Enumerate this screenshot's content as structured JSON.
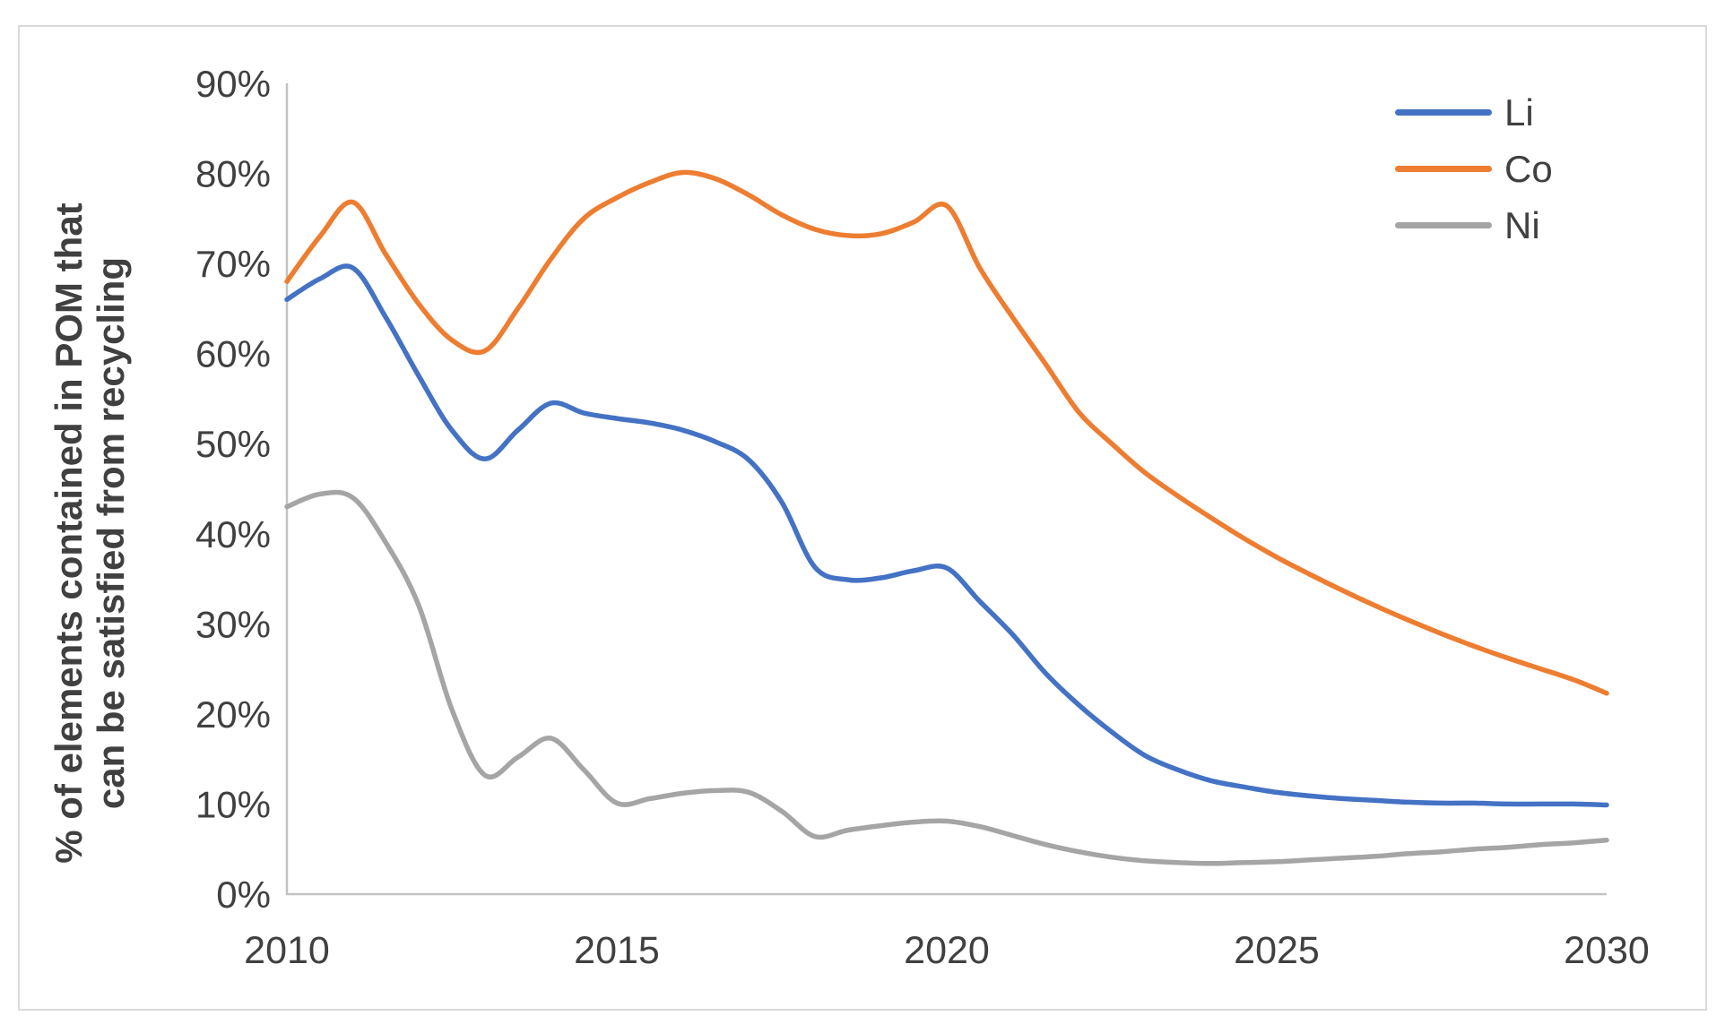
{
  "page": {
    "background_color": "#ffffff",
    "frame_border_color": "#d9d9d9",
    "text_color": "#404040",
    "axis_line_color": "#c3c3c3"
  },
  "chart_data": {
    "type": "line",
    "title": "",
    "xlabel": "",
    "ylabel_line1": "% of elements contained in POM that",
    "ylabel_line2": "can be satisfied from recycling",
    "xlim": [
      2010,
      2030
    ],
    "ylim_percent": [
      0,
      90
    ],
    "grid": false,
    "legend_position": "top-right",
    "x_tick_labels": [
      "2010",
      "2015",
      "2020",
      "2025",
      "2030"
    ],
    "x_tick_years": [
      2010,
      2015,
      2020,
      2025,
      2030
    ],
    "y_tick_labels": [
      "0%",
      "10%",
      "20%",
      "30%",
      "40%",
      "50%",
      "60%",
      "70%",
      "80%",
      "90%"
    ],
    "y_tick_values": [
      0,
      10,
      20,
      30,
      40,
      50,
      60,
      70,
      80,
      90
    ],
    "x": [
      2010,
      2010.5,
      2011,
      2011.5,
      2012,
      2012.5,
      2013,
      2013.5,
      2014,
      2014.5,
      2015,
      2015.5,
      2016,
      2016.5,
      2017,
      2017.5,
      2018,
      2018.5,
      2019,
      2019.5,
      2020,
      2020.5,
      2021,
      2021.5,
      2022,
      2022.5,
      2023,
      2023.5,
      2024,
      2024.5,
      2025,
      2025.5,
      2026,
      2026.5,
      2027,
      2027.5,
      2028,
      2028.5,
      2029,
      2029.5,
      2030
    ],
    "series": [
      {
        "name": "Li",
        "color": "#4472C4",
        "values": [
          66,
          68.3,
          69.5,
          64,
          57.5,
          51.5,
          48.3,
          51.5,
          54.5,
          53.4,
          52.8,
          52.3,
          51.5,
          50.2,
          48.2,
          43.5,
          36.3,
          34.9,
          35.1,
          35.9,
          36.2,
          32.5,
          28.8,
          24.5,
          21,
          18,
          15.4,
          13.8,
          12.6,
          11.9,
          11.3,
          10.9,
          10.6,
          10.4,
          10.2,
          10.1,
          10.1,
          10,
          10,
          10,
          9.9
        ]
      },
      {
        "name": "Co",
        "color": "#ED7D31",
        "values": [
          68,
          73,
          76.8,
          71,
          65.5,
          61.5,
          60.3,
          65,
          70.5,
          75,
          77.3,
          79,
          80.1,
          79.4,
          77.6,
          75.4,
          73.8,
          73.1,
          73.3,
          74.6,
          76.4,
          69.5,
          64,
          58.8,
          53.5,
          50,
          46.8,
          44.2,
          41.8,
          39.5,
          37.4,
          35.5,
          33.7,
          32,
          30.4,
          28.9,
          27.5,
          26.2,
          25,
          23.8,
          22.3
        ]
      },
      {
        "name": "Ni",
        "color": "#A5A5A5",
        "values": [
          43,
          44.4,
          44,
          39,
          32,
          20.5,
          13.2,
          15.2,
          17.3,
          13.8,
          10.1,
          10.6,
          11.2,
          11.5,
          11.3,
          9.2,
          6.4,
          7.1,
          7.6,
          8,
          8.1,
          7.5,
          6.5,
          5.5,
          4.7,
          4.1,
          3.7,
          3.5,
          3.4,
          3.5,
          3.6,
          3.8,
          4,
          4.2,
          4.5,
          4.7,
          5,
          5.2,
          5.5,
          5.7,
          6
        ]
      }
    ]
  }
}
